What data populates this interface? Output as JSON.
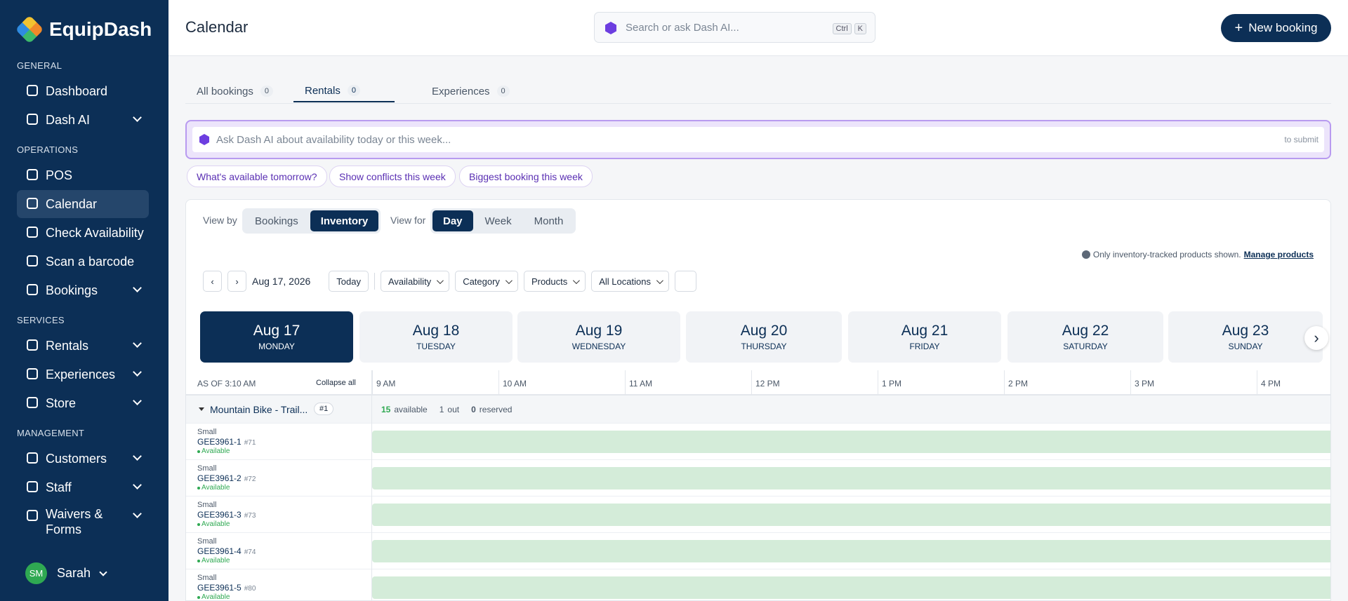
{
  "sidebar": {
    "brand": "EquipDash",
    "sections": [
      {
        "label": "GENERAL",
        "items": [
          {
            "label": "Dashboard",
            "expandable": false
          },
          {
            "label": "Dash AI",
            "expandable": true
          }
        ]
      },
      {
        "label": "OPERATIONS",
        "items": [
          {
            "label": "POS",
            "expandable": false
          },
          {
            "label": "Calendar",
            "expandable": false,
            "active": true
          },
          {
            "label": "Check Availability",
            "expandable": false
          },
          {
            "label": "Scan a barcode",
            "expandable": false
          },
          {
            "label": "Bookings",
            "expandable": true
          }
        ]
      },
      {
        "label": "SERVICES",
        "items": [
          {
            "label": "Rentals",
            "expandable": true
          },
          {
            "label": "Experiences",
            "expandable": true
          },
          {
            "label": "Store",
            "expandable": true
          }
        ]
      },
      {
        "label": "MANAGEMENT",
        "items": [
          {
            "label": "Customers",
            "expandable": true
          },
          {
            "label": "Staff",
            "expandable": true
          },
          {
            "label": "Waivers & Forms",
            "expandable": true
          }
        ]
      }
    ],
    "user": {
      "initials": "SM",
      "name": "Sarah"
    }
  },
  "header": {
    "title": "Calendar",
    "search_placeholder": "Search or ask Dash AI...",
    "shortcut": [
      "Ctrl",
      "K"
    ],
    "new_booking": "New booking"
  },
  "tabs": [
    {
      "label": "All bookings",
      "count": 0
    },
    {
      "label": "Rentals",
      "count": 0,
      "active": true
    },
    {
      "label": "Experiences",
      "count": 0
    }
  ],
  "ai": {
    "placeholder": "Ask Dash AI about availability today or this week...",
    "submit_hint": "to submit",
    "suggestions": [
      "What's available tomorrow?",
      "Show conflicts this week",
      "Biggest booking this week"
    ]
  },
  "view": {
    "view_by_label": "View by",
    "view_by": [
      "Bookings",
      "Inventory"
    ],
    "view_by_active": 1,
    "view_for_label": "View for",
    "view_for": [
      "Day",
      "Week",
      "Month"
    ],
    "view_for_active": 0
  },
  "notice": {
    "text": "Only inventory-tracked products shown.",
    "link": "Manage products"
  },
  "controls": {
    "date": "Aug 17, 2026",
    "today": "Today",
    "filters": [
      "Availability",
      "Category",
      "Products",
      "All Locations"
    ]
  },
  "days": [
    {
      "date": "Aug 17",
      "weekday": "MONDAY",
      "active": true
    },
    {
      "date": "Aug 18",
      "weekday": "TUESDAY"
    },
    {
      "date": "Aug 19",
      "weekday": "WEDNESDAY"
    },
    {
      "date": "Aug 20",
      "weekday": "THURSDAY"
    },
    {
      "date": "Aug 21",
      "weekday": "FRIDAY"
    },
    {
      "date": "Aug 22",
      "weekday": "SATURDAY"
    },
    {
      "date": "Aug 23",
      "weekday": "SUNDAY"
    }
  ],
  "timeline": {
    "as_of": "AS OF 3:10 AM",
    "collapse": "Collapse all",
    "times": [
      "9 AM",
      "10 AM",
      "11 AM",
      "12 PM",
      "1 PM",
      "2 PM",
      "3 PM",
      "4 PM"
    ]
  },
  "group": {
    "name": "Mountain Bike - Trail...",
    "number": "#1",
    "available": 15,
    "available_label": "available",
    "out": 1,
    "out_label": "out",
    "reserved": 0,
    "reserved_label": "reserved"
  },
  "items": [
    {
      "size": "Small",
      "code": "GEE3961-1",
      "number": "#71",
      "status": "Available"
    },
    {
      "size": "Small",
      "code": "GEE3961-2",
      "number": "#72",
      "status": "Available"
    },
    {
      "size": "Small",
      "code": "GEE3961-3",
      "number": "#73",
      "status": "Available"
    },
    {
      "size": "Small",
      "code": "GEE3961-4",
      "number": "#74",
      "status": "Available"
    },
    {
      "size": "Small",
      "code": "GEE3961-5",
      "number": "#80",
      "status": "Available"
    }
  ]
}
